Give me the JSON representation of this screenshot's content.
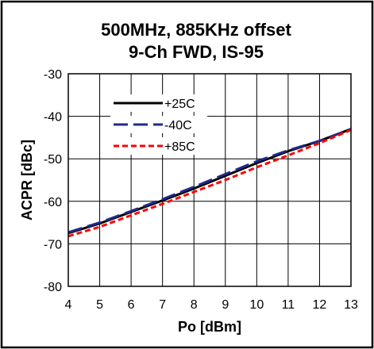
{
  "chart_data": {
    "type": "line",
    "title": "500MHz, 885KHz offset",
    "subtitle": "9-Ch FWD, IS-95",
    "xlabel": "Po [dBm]",
    "ylabel": "ACPR [dBc]",
    "xlim": [
      4,
      13
    ],
    "ylim": [
      -80,
      -30
    ],
    "xticks": [
      "4",
      "5",
      "6",
      "7",
      "8",
      "9",
      "10",
      "11",
      "12",
      "13"
    ],
    "yticks": [
      "-30",
      "-40",
      "-50",
      "-60",
      "-70",
      "-80"
    ],
    "grid": true,
    "legend_position": "top-left",
    "series": [
      {
        "name": "+25C",
        "color": "#000000",
        "style": "solid",
        "x": [
          4,
          5,
          6,
          7,
          8,
          9,
          10,
          11,
          12,
          13
        ],
        "y": [
          -67.5,
          -65.2,
          -62.5,
          -59.8,
          -57,
          -54,
          -51,
          -48.2,
          -45.8,
          -43
        ]
      },
      {
        "name": "-40C",
        "color": "#1f2a8a",
        "style": "dashed",
        "x": [
          4,
          5,
          6,
          7,
          8,
          9,
          10,
          11,
          12,
          13
        ],
        "y": [
          -67.3,
          -65,
          -62.3,
          -59.5,
          -56.6,
          -53.6,
          -50.6,
          -48,
          -45.8,
          -43
        ]
      },
      {
        "name": "+85C",
        "color": "#ff0000",
        "style": "dotted",
        "x": [
          4,
          5,
          6,
          7,
          8,
          9,
          10,
          11,
          12,
          13
        ],
        "y": [
          -68.2,
          -66,
          -63.3,
          -60.6,
          -57.8,
          -55,
          -52,
          -49.2,
          -46.3,
          -43.2
        ]
      }
    ]
  }
}
